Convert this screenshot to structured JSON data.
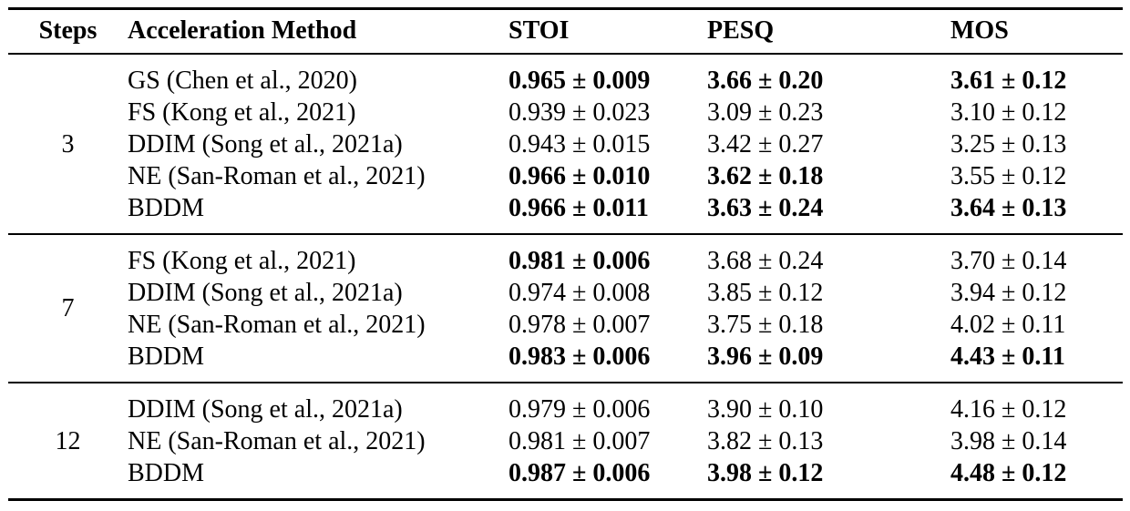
{
  "table": {
    "columns": {
      "steps": "Steps",
      "method": "Acceleration Method",
      "stoi": "STOI",
      "pesq": "PESQ",
      "mos": "MOS"
    },
    "groups": [
      {
        "steps": "3",
        "rows": [
          {
            "method": "GS (Chen et al., 2020)",
            "stoi": {
              "v": "0.965 ± 0.009",
              "b": true
            },
            "pesq": {
              "v": "3.66 ± 0.20",
              "b": true
            },
            "mos": {
              "v": "3.61 ± 0.12",
              "b": true
            }
          },
          {
            "method": "FS (Kong et al., 2021)",
            "stoi": {
              "v": "0.939 ± 0.023",
              "b": false
            },
            "pesq": {
              "v": "3.09 ± 0.23",
              "b": false
            },
            "mos": {
              "v": "3.10 ± 0.12",
              "b": false
            }
          },
          {
            "method": "DDIM (Song et al., 2021a)",
            "stoi": {
              "v": "0.943 ± 0.015",
              "b": false
            },
            "pesq": {
              "v": "3.42 ± 0.27",
              "b": false
            },
            "mos": {
              "v": "3.25 ± 0.13",
              "b": false
            }
          },
          {
            "method": "NE (San-Roman et al., 2021)",
            "stoi": {
              "v": "0.966 ± 0.010",
              "b": true
            },
            "pesq": {
              "v": "3.62 ± 0.18",
              "b": true
            },
            "mos": {
              "v": "3.55 ± 0.12",
              "b": false
            }
          },
          {
            "method": "BDDM",
            "stoi": {
              "v": "0.966 ± 0.011",
              "b": true
            },
            "pesq": {
              "v": "3.63 ± 0.24",
              "b": true
            },
            "mos": {
              "v": "3.64 ± 0.13",
              "b": true
            }
          }
        ]
      },
      {
        "steps": "7",
        "rows": [
          {
            "method": "FS (Kong et al., 2021)",
            "stoi": {
              "v": "0.981 ± 0.006",
              "b": true
            },
            "pesq": {
              "v": "3.68 ± 0.24",
              "b": false
            },
            "mos": {
              "v": "3.70 ± 0.14",
              "b": false
            }
          },
          {
            "method": "DDIM (Song et al., 2021a)",
            "stoi": {
              "v": "0.974 ± 0.008",
              "b": false
            },
            "pesq": {
              "v": "3.85 ± 0.12",
              "b": false
            },
            "mos": {
              "v": "3.94 ± 0.12",
              "b": false
            }
          },
          {
            "method": "NE (San-Roman et al., 2021)",
            "stoi": {
              "v": "0.978 ± 0.007",
              "b": false
            },
            "pesq": {
              "v": "3.75 ± 0.18",
              "b": false
            },
            "mos": {
              "v": "4.02 ± 0.11",
              "b": false
            }
          },
          {
            "method": "BDDM",
            "stoi": {
              "v": "0.983 ± 0.006",
              "b": true
            },
            "pesq": {
              "v": "3.96 ± 0.09",
              "b": true
            },
            "mos": {
              "v": "4.43 ± 0.11",
              "b": true
            }
          }
        ]
      },
      {
        "steps": "12",
        "rows": [
          {
            "method": "DDIM (Song et al., 2021a)",
            "stoi": {
              "v": "0.979 ± 0.006",
              "b": false
            },
            "pesq": {
              "v": "3.90 ± 0.10",
              "b": false
            },
            "mos": {
              "v": "4.16 ± 0.12",
              "b": false
            }
          },
          {
            "method": "NE (San-Roman et al., 2021)",
            "stoi": {
              "v": "0.981 ± 0.007",
              "b": false
            },
            "pesq": {
              "v": "3.82 ± 0.13",
              "b": false
            },
            "mos": {
              "v": "3.98 ± 0.14",
              "b": false
            }
          },
          {
            "method": "BDDM",
            "stoi": {
              "v": "0.987 ± 0.006",
              "b": true
            },
            "pesq": {
              "v": "3.98 ± 0.12",
              "b": true
            },
            "mos": {
              "v": "4.48 ± 0.12",
              "b": true
            }
          }
        ]
      }
    ]
  }
}
